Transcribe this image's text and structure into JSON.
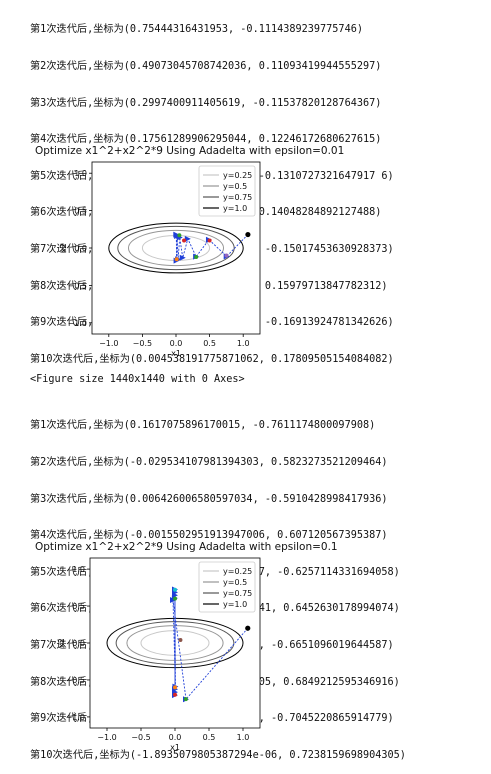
{
  "output_block_1": [
    "第1次迭代后,坐标为(0.75444316431953, -0.1114389239775746)",
    "第2次迭代后,坐标为(0.49073045708742036, 0.11093419944555297)",
    "第3次迭代后,坐标为(0.2997400911405619, -0.11537820128764367)",
    "第4次迭代后,坐标为(0.17561289906295044, 0.12246172680627615)",
    "第5次迭代后,坐标为(0.10014605308310573, -0.1310727321647917 6)",
    "第6次迭代后,坐标为(0.05597592493197046, 0.14048284892127488)",
    "第7次迭代后,坐标为(0.030732222360432174, -0.15017453630928373)",
    "第8次迭代后,坐标为(0.016570450263794535, 0.15979713847782312)",
    "第9次迭代后,坐标为(0.008763659524674656, -0.16913924781342626)",
    "第10次迭代后,坐标为(0.004538191775871062, 0.17809505154084082)"
  ],
  "figure_caption": "<Figure size 1440x1440 with 0 Axes>",
  "output_block_2": [
    "第1次迭代后,坐标为(0.1617075896170015, -0.7611174800097908)",
    "第2次迭代后,坐标为(-0.029534107981394303, 0.5823273521209464)",
    "第3次迭代后,坐标为(0.006426006580597034, -0.5910428998417936)",
    "第4次迭代后,坐标为(-0.0015502951913947006, 0.607120567395387)",
    "第5次迭代后,坐标为(0.00041143499329551877, -0.6257114331694058)",
    "第6次迭代后,坐标为(-0.00011945778226750241, 0.6452630178994074)",
    "第7次迭代后,坐标为(3.775431537697083e-05, -0.6651096019644587)",
    "第8次迭代后,坐标为(-1.2927208996704146e-05, 0.6849212595346916)",
    "第9次迭代后,坐标为(4.774052862633374e-06, -0.7045220865914779)",
    "第10次迭代后,坐标为(-1.8935079805387294e-06, 0.7238159698904305)"
  ],
  "chart_data": [
    {
      "type": "contour",
      "title": "Optimize x1^2+x2^2*9 Using Adadelta with epsilon=0.01",
      "xlabel": "x1",
      "ylabel": "x2",
      "xlim": [
        -1.25,
        1.25
      ],
      "ylim": [
        -1.15,
        1.15
      ],
      "xticks": [
        "−1.0",
        "−0.5",
        "0.0",
        "0.5",
        "1.0"
      ],
      "yticks": [
        "1.0",
        "0.5",
        "0.0",
        "−0.5",
        "−1.0"
      ],
      "xtick_values": [
        -1.0,
        -0.5,
        0.0,
        0.5,
        1.0
      ],
      "ytick_values": [
        1.0,
        0.5,
        0.0,
        -0.5,
        -1.0
      ],
      "legend": {
        "position": "top-right",
        "entries": [
          "y=0.25",
          "y=0.5",
          "y=0.75",
          "y=1.0"
        ]
      },
      "contour_levels": [
        0.25,
        0.5,
        0.75,
        1.0
      ],
      "contour_colors": [
        "#c8c8c8",
        "#969696",
        "#555555",
        "#000000"
      ],
      "start_point": {
        "x": 1.07,
        "y": 0.18
      },
      "path_color": "#1f3fd8",
      "path": [
        {
          "x": 1.07,
          "y": 0.18
        },
        {
          "x": 0.7544,
          "y": -0.1114
        },
        {
          "x": 0.4907,
          "y": 0.1109
        },
        {
          "x": 0.2997,
          "y": -0.1154
        },
        {
          "x": 0.1756,
          "y": 0.1225
        },
        {
          "x": 0.1001,
          "y": -0.1311
        },
        {
          "x": 0.056,
          "y": 0.1405
        },
        {
          "x": 0.0307,
          "y": -0.1502
        },
        {
          "x": 0.0166,
          "y": 0.1598
        },
        {
          "x": 0.0088,
          "y": -0.1691
        },
        {
          "x": 0.0045,
          "y": 0.1781
        }
      ],
      "markers": [
        {
          "x": 0.05,
          "y": 0.17,
          "color": "#2ca02c"
        },
        {
          "x": 0.12,
          "y": 0.1,
          "color": "#d62728"
        },
        {
          "x": 0.5,
          "y": 0.1,
          "color": "#d62728"
        },
        {
          "x": 0.3,
          "y": -0.12,
          "color": "#2ca02c"
        },
        {
          "x": 0.75,
          "y": -0.1,
          "color": "#9467bd"
        },
        {
          "x": 0.01,
          "y": -0.15,
          "color": "#ff7f0e"
        }
      ]
    },
    {
      "type": "contour",
      "title": "Optimize x1^2+x2^2*9 Using Adadelta with epsilon=0.1",
      "xlabel": "x1",
      "ylabel": "x2",
      "xlim": [
        -1.25,
        1.25
      ],
      "ylim": [
        -1.15,
        1.15
      ],
      "xticks": [
        "−1.0",
        "−0.5",
        "0.0",
        "0.5",
        "1.0"
      ],
      "yticks": [
        "1.0",
        "0.5",
        "0.0",
        "−0.5",
        "−1.0"
      ],
      "xtick_values": [
        -1.0,
        -0.5,
        0.0,
        0.5,
        1.0
      ],
      "ytick_values": [
        1.0,
        0.5,
        0.0,
        -0.5,
        -1.0
      ],
      "legend": {
        "position": "top-right",
        "entries": [
          "y=0.25",
          "y=0.5",
          "y=0.75",
          "y=1.0"
        ]
      },
      "contour_levels": [
        0.25,
        0.5,
        0.75,
        1.0
      ],
      "contour_colors": [
        "#c8c8c8",
        "#969696",
        "#555555",
        "#000000"
      ],
      "start_point": {
        "x": 1.07,
        "y": 0.2
      },
      "path_color": "#1f3fd8",
      "path": [
        {
          "x": 1.07,
          "y": 0.2
        },
        {
          "x": 0.1617,
          "y": -0.7611
        },
        {
          "x": -0.0295,
          "y": 0.5823
        },
        {
          "x": 0.0064,
          "y": -0.591
        },
        {
          "x": -0.0016,
          "y": 0.6071
        },
        {
          "x": 0.0004,
          "y": -0.6257
        },
        {
          "x": -0.0001,
          "y": 0.6453
        },
        {
          "x": 0.0,
          "y": -0.6651
        },
        {
          "x": 0.0,
          "y": 0.6849
        },
        {
          "x": 0.0,
          "y": -0.7045
        },
        {
          "x": 0.0,
          "y": 0.7238
        }
      ],
      "markers": [
        {
          "x": 0.0,
          "y": 0.72,
          "color": "#17becf"
        },
        {
          "x": 0.0,
          "y": 0.6,
          "color": "#2ca02c"
        },
        {
          "x": 0.0,
          "y": -0.6,
          "color": "#ff7f0e"
        },
        {
          "x": 0.0,
          "y": -0.7,
          "color": "#d62728"
        },
        {
          "x": 0.16,
          "y": -0.76,
          "color": "#2ca02c"
        },
        {
          "x": 0.08,
          "y": 0.04,
          "color": "#8c564b"
        }
      ]
    }
  ]
}
